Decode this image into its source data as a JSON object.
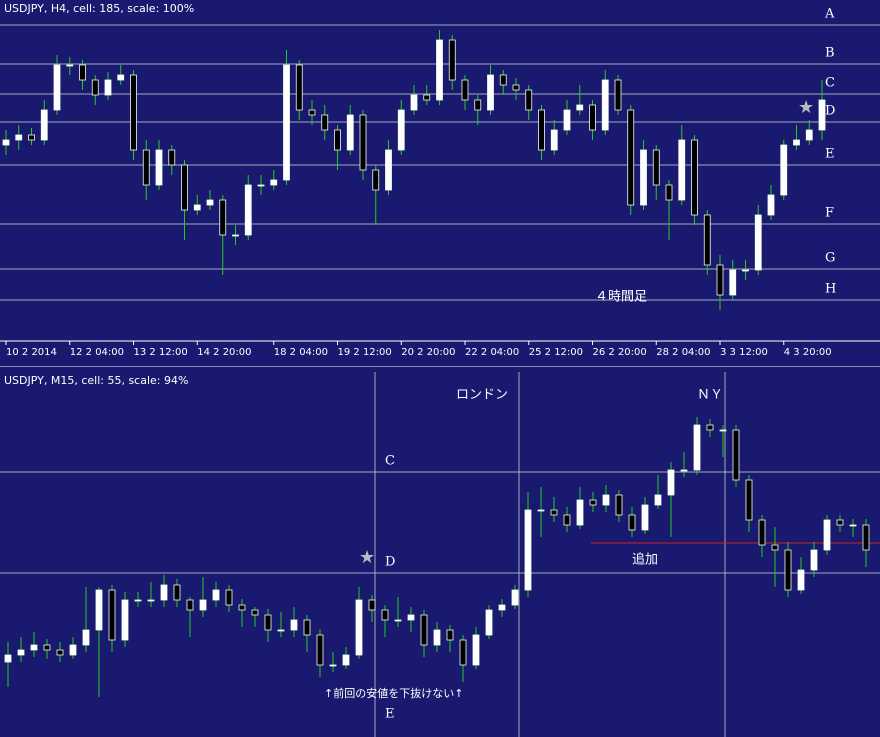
{
  "chart_data": [
    {
      "type": "candlestick",
      "title": "USDJPY, H4, cell: 185, scale: 100%",
      "ylim": [
        0,
        340
      ],
      "bull_color": "#ffffff",
      "bear_color": "#000000",
      "wick_color": "#22cc22",
      "line_color": "#ccdddd",
      "levels": [
        {
          "name": "A",
          "value": 315
        },
        {
          "name": "B",
          "value": 276
        },
        {
          "name": "C",
          "value": 246
        },
        {
          "name": "D",
          "value": 218
        },
        {
          "name": "E",
          "value": 175
        },
        {
          "name": "F",
          "value": 116
        },
        {
          "name": "G",
          "value": 71
        },
        {
          "name": "H",
          "value": 40
        }
      ],
      "xticks": [
        {
          "value": 0,
          "label": "10 2 2014"
        },
        {
          "value": 5,
          "label": "12 2 04:00"
        },
        {
          "value": 10,
          "label": "13 2 12:00"
        },
        {
          "value": 15,
          "label": "14 2 20:00"
        },
        {
          "value": 21,
          "label": "18 2 04:00"
        },
        {
          "value": 26,
          "label": "19 2 12:00"
        },
        {
          "value": 31,
          "label": "20 2 20:00"
        },
        {
          "value": 36,
          "label": "22 2 04:00"
        },
        {
          "value": 41,
          "label": "25 2 12:00"
        },
        {
          "value": 46,
          "label": "26 2 20:00"
        },
        {
          "value": 51,
          "label": "28 2 04:00"
        },
        {
          "value": 56,
          "label": "3 3 12:00"
        },
        {
          "value": 61,
          "label": "4 3 20:00"
        }
      ],
      "annotations": [
        "４時間足"
      ],
      "ohlc": [
        [
          195,
          210,
          185,
          200
        ],
        [
          200,
          215,
          190,
          205
        ],
        [
          205,
          212,
          195,
          200
        ],
        [
          200,
          240,
          195,
          230
        ],
        [
          230,
          285,
          225,
          275
        ],
        [
          275,
          283,
          265,
          275
        ],
        [
          275,
          280,
          250,
          260
        ],
        [
          260,
          265,
          235,
          245
        ],
        [
          245,
          268,
          240,
          260
        ],
        [
          260,
          275,
          255,
          265
        ],
        [
          265,
          270,
          180,
          190
        ],
        [
          190,
          200,
          140,
          155
        ],
        [
          155,
          200,
          150,
          190
        ],
        [
          190,
          195,
          165,
          175
        ],
        [
          175,
          180,
          100,
          130
        ],
        [
          130,
          145,
          125,
          135
        ],
        [
          135,
          150,
          130,
          140
        ],
        [
          140,
          145,
          65,
          105
        ],
        [
          105,
          115,
          95,
          105
        ],
        [
          105,
          165,
          100,
          155
        ],
        [
          155,
          165,
          145,
          155
        ],
        [
          155,
          170,
          150,
          160
        ],
        [
          160,
          290,
          155,
          275
        ],
        [
          275,
          280,
          220,
          230
        ],
        [
          230,
          240,
          215,
          225
        ],
        [
          225,
          235,
          200,
          210
        ],
        [
          210,
          215,
          170,
          190
        ],
        [
          190,
          235,
          185,
          225
        ],
        [
          225,
          230,
          160,
          170
        ],
        [
          170,
          175,
          115,
          150
        ],
        [
          150,
          200,
          145,
          190
        ],
        [
          190,
          240,
          185,
          230
        ],
        [
          230,
          255,
          225,
          245
        ],
        [
          245,
          255,
          235,
          240
        ],
        [
          240,
          310,
          235,
          300
        ],
        [
          300,
          305,
          250,
          260
        ],
        [
          260,
          265,
          230,
          240
        ],
        [
          240,
          245,
          215,
          230
        ],
        [
          230,
          275,
          225,
          265
        ],
        [
          265,
          270,
          245,
          255
        ],
        [
          255,
          262,
          240,
          250
        ],
        [
          250,
          255,
          220,
          230
        ],
        [
          230,
          235,
          180,
          190
        ],
        [
          190,
          220,
          185,
          210
        ],
        [
          210,
          240,
          205,
          230
        ],
        [
          230,
          255,
          225,
          235
        ],
        [
          235,
          240,
          200,
          210
        ],
        [
          210,
          270,
          205,
          260
        ],
        [
          260,
          265,
          225,
          230
        ],
        [
          230,
          235,
          125,
          135
        ],
        [
          135,
          200,
          130,
          190
        ],
        [
          190,
          195,
          140,
          155
        ],
        [
          155,
          160,
          100,
          140
        ],
        [
          140,
          215,
          135,
          200
        ],
        [
          200,
          205,
          115,
          125
        ],
        [
          125,
          130,
          65,
          75
        ],
        [
          75,
          85,
          30,
          45
        ],
        [
          45,
          80,
          40,
          70
        ],
        [
          70,
          80,
          60,
          70
        ],
        [
          70,
          135,
          65,
          125
        ],
        [
          125,
          155,
          120,
          145
        ],
        [
          145,
          200,
          140,
          195
        ],
        [
          195,
          215,
          190,
          200
        ],
        [
          200,
          220,
          195,
          210
        ],
        [
          210,
          260,
          200,
          240
        ]
      ]
    },
    {
      "type": "candlestick",
      "title": "USDJPY, M15, cell: 55, scale: 94%",
      "ylim": [
        0,
        365
      ],
      "bull_color": "#ffffff",
      "bear_color": "#000000",
      "wick_color": "#22cc22",
      "line_color": "#ccdddd",
      "levels": [
        {
          "name": "C",
          "value": 265
        },
        {
          "name": "D",
          "value": 164
        }
      ],
      "added_level": {
        "value": 194,
        "color": "#cc2222"
      },
      "annotations": [
        "ロンドン",
        "ＮＹ",
        "追加",
        "↑前回の安値を下抜けない↑",
        "E"
      ],
      "ohlc": [
        [
          75,
          95,
          50,
          82
        ],
        [
          82,
          100,
          75,
          87
        ],
        [
          87,
          105,
          80,
          92
        ],
        [
          92,
          98,
          78,
          87
        ],
        [
          87,
          95,
          75,
          82
        ],
        [
          82,
          100,
          78,
          92
        ],
        [
          92,
          150,
          85,
          107
        ],
        [
          107,
          150,
          40,
          147
        ],
        [
          147,
          152,
          85,
          97
        ],
        [
          97,
          145,
          90,
          137
        ],
        [
          137,
          145,
          130,
          137
        ],
        [
          137,
          155,
          130,
          137
        ],
        [
          137,
          162,
          130,
          152
        ],
        [
          152,
          158,
          130,
          137
        ],
        [
          137,
          140,
          100,
          127
        ],
        [
          127,
          160,
          120,
          137
        ],
        [
          137,
          155,
          130,
          147
        ],
        [
          147,
          152,
          125,
          132
        ],
        [
          132,
          138,
          110,
          127
        ],
        [
          127,
          130,
          110,
          122
        ],
        [
          122,
          128,
          95,
          107
        ],
        [
          107,
          125,
          100,
          107
        ],
        [
          107,
          130,
          100,
          117
        ],
        [
          117,
          122,
          85,
          102
        ],
        [
          102,
          108,
          60,
          72
        ],
        [
          72,
          85,
          65,
          72
        ],
        [
          72,
          90,
          68,
          82
        ],
        [
          82,
          150,
          78,
          137
        ],
        [
          137,
          142,
          115,
          127
        ],
        [
          127,
          132,
          100,
          117
        ],
        [
          117,
          140,
          110,
          117
        ],
        [
          117,
          130,
          105,
          122
        ],
        [
          122,
          127,
          80,
          92
        ],
        [
          92,
          115,
          85,
          107
        ],
        [
          107,
          112,
          85,
          97
        ],
        [
          97,
          102,
          55,
          72
        ],
        [
          72,
          110,
          68,
          102
        ],
        [
          102,
          132,
          98,
          127
        ],
        [
          127,
          138,
          120,
          132
        ],
        [
          132,
          152,
          128,
          147
        ],
        [
          147,
          245,
          140,
          227
        ],
        [
          227,
          250,
          200,
          227
        ],
        [
          227,
          240,
          215,
          222
        ],
        [
          222,
          230,
          205,
          212
        ],
        [
          212,
          250,
          208,
          237
        ],
        [
          237,
          245,
          225,
          232
        ],
        [
          232,
          252,
          225,
          242
        ],
        [
          242,
          247,
          215,
          222
        ],
        [
          222,
          230,
          200,
          207
        ],
        [
          207,
          240,
          203,
          232
        ],
        [
          232,
          262,
          228,
          242
        ],
        [
          242,
          275,
          200,
          267
        ],
        [
          267,
          285,
          260,
          267
        ],
        [
          267,
          320,
          262,
          312
        ],
        [
          312,
          318,
          300,
          307
        ],
        [
          307,
          312,
          280,
          307
        ],
        [
          307,
          312,
          250,
          257
        ],
        [
          257,
          262,
          205,
          217
        ],
        [
          217,
          222,
          180,
          192
        ],
        [
          192,
          210,
          150,
          187
        ],
        [
          187,
          195,
          140,
          147
        ],
        [
          147,
          180,
          143,
          167
        ],
        [
          167,
          195,
          160,
          187
        ],
        [
          187,
          222,
          182,
          217
        ],
        [
          217,
          222,
          205,
          212
        ],
        [
          212,
          218,
          200,
          212
        ],
        [
          212,
          218,
          170,
          187
        ]
      ]
    }
  ]
}
